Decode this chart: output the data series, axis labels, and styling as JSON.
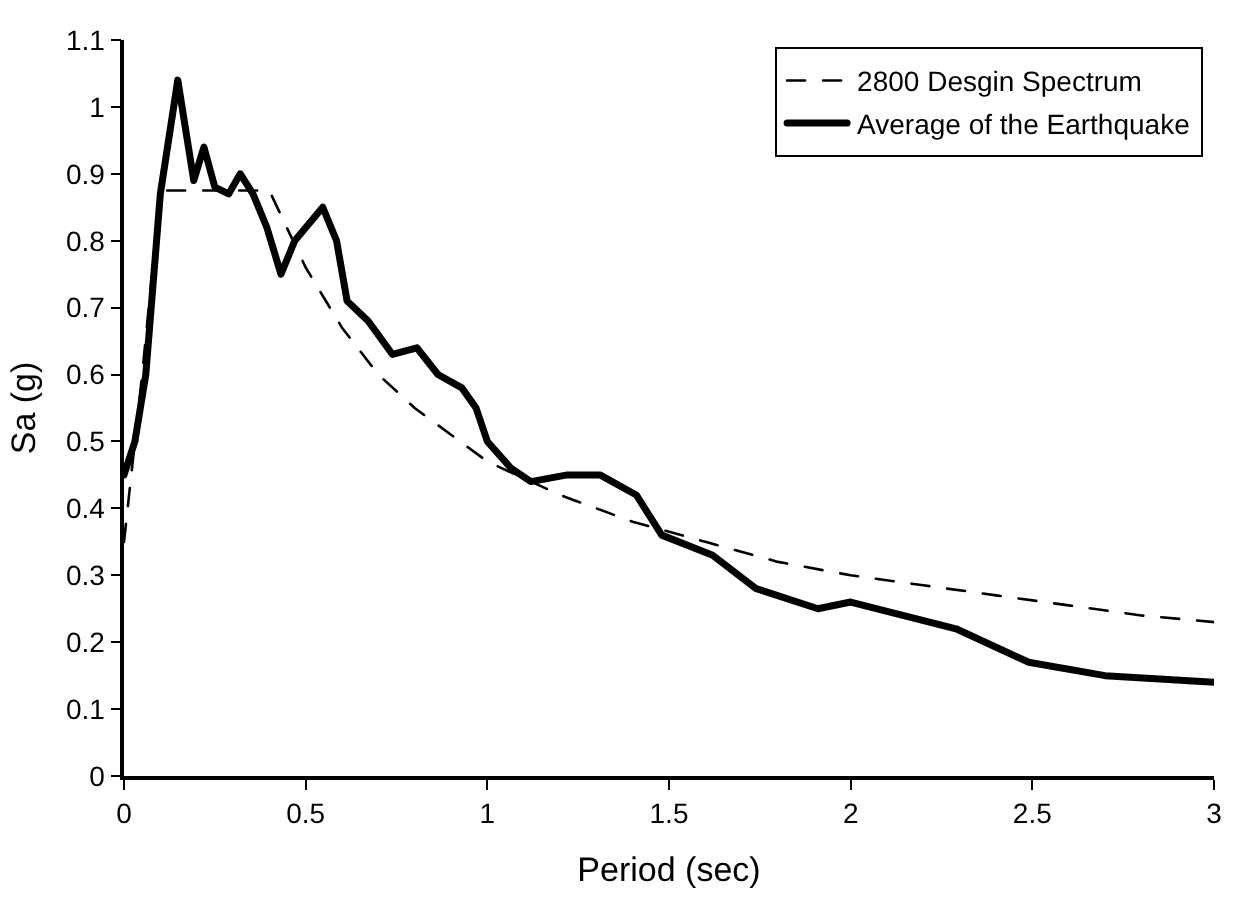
{
  "chart_data": {
    "type": "line",
    "xlabel": "Period (sec)",
    "ylabel": "Sa (g)",
    "xlim": [
      0,
      3
    ],
    "xticks": [
      0,
      0.5,
      1,
      1.5,
      2,
      2.5,
      3
    ],
    "ylim": [
      0,
      1.1
    ],
    "yticks": [
      0,
      0.1,
      0.2,
      0.3,
      0.4,
      0.5,
      0.6,
      0.7,
      0.8,
      0.9,
      1,
      1.1
    ],
    "grid": false,
    "legend": "top right",
    "marker": "none",
    "series": [
      {
        "name": "2800 Desgin Spectrum",
        "color": "#000000",
        "line_style": "dashed",
        "x": [
          0,
          0.05,
          0.1,
          0.4,
          0.5,
          0.6,
          0.7,
          0.8,
          0.9,
          1,
          1.2,
          1.4,
          1.6,
          1.8,
          2,
          2.2,
          2.4,
          2.6,
          2.8,
          3
        ],
        "values": [
          0.35,
          0.6,
          0.875,
          0.875,
          0.76,
          0.67,
          0.6,
          0.55,
          0.51,
          0.47,
          0.42,
          0.38,
          0.35,
          0.32,
          0.3,
          0.285,
          0.27,
          0.255,
          0.24,
          0.23
        ]
      },
      {
        "name": "Average of the Earthquake",
        "color": "#000000",
        "line_style": "solid",
        "x": [
          0,
          0.03,
          0.06,
          0.1,
          0.148,
          0.192,
          0.22,
          0.25,
          0.288,
          0.32,
          0.355,
          0.393,
          0.432,
          0.47,
          0.547,
          0.585,
          0.614,
          0.672,
          0.739,
          0.806,
          0.864,
          0.93,
          0.969,
          1,
          1.065,
          1.12,
          1.22,
          1.31,
          1.41,
          1.48,
          1.62,
          1.74,
          1.91,
          2.0,
          2.29,
          2.49,
          2.7,
          3
        ],
        "values": [
          0.45,
          0.5,
          0.6,
          0.87,
          1.04,
          0.89,
          0.94,
          0.88,
          0.87,
          0.9,
          0.87,
          0.82,
          0.75,
          0.8,
          0.85,
          0.8,
          0.71,
          0.68,
          0.63,
          0.64,
          0.6,
          0.58,
          0.55,
          0.5,
          0.46,
          0.44,
          0.45,
          0.45,
          0.42,
          0.36,
          0.33,
          0.28,
          0.25,
          0.26,
          0.22,
          0.17,
          0.15,
          0.14
        ]
      }
    ]
  }
}
